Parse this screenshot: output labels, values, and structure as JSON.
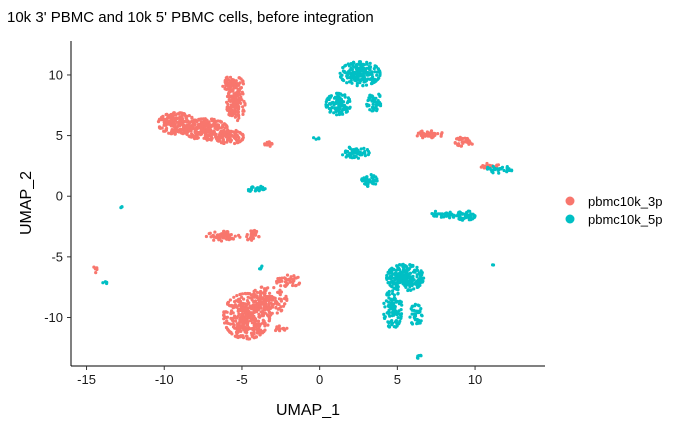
{
  "chart_data": {
    "type": "scatter",
    "title": "10k 3' PBMC and 10k 5' PBMC cells, before integration",
    "xlabel": "UMAP_1",
    "ylabel": "UMAP_2",
    "xlim": [
      -16,
      14.5
    ],
    "ylim": [
      -14,
      12.8
    ],
    "xticks": [
      -15,
      -10,
      -5,
      0,
      5,
      10
    ],
    "yticks": [
      -10,
      -5,
      0,
      5,
      10
    ],
    "grid": false,
    "legend_position": "right",
    "series": [
      {
        "name": "pbmc10k_3p",
        "color": "#F8766D",
        "clusters": [
          {
            "cx": -9.2,
            "cy": 6.0,
            "rx": 1.2,
            "ry": 0.9,
            "n": 180
          },
          {
            "cx": -7.3,
            "cy": 5.5,
            "rx": 1.4,
            "ry": 0.9,
            "n": 220
          },
          {
            "cx": -5.8,
            "cy": 4.9,
            "rx": 0.9,
            "ry": 0.6,
            "n": 110
          },
          {
            "cx": -5.4,
            "cy": 7.6,
            "rx": 0.6,
            "ry": 1.4,
            "n": 120
          },
          {
            "cx": -5.6,
            "cy": 9.3,
            "rx": 0.7,
            "ry": 0.6,
            "n": 80
          },
          {
            "cx": -3.4,
            "cy": 4.3,
            "rx": 0.5,
            "ry": 0.2,
            "n": 12
          },
          {
            "cx": -6.2,
            "cy": -3.3,
            "rx": 1.1,
            "ry": 0.4,
            "n": 60
          },
          {
            "cx": -4.3,
            "cy": -3.3,
            "rx": 0.4,
            "ry": 0.5,
            "n": 30
          },
          {
            "cx": -4.7,
            "cy": -9.9,
            "rx": 1.5,
            "ry": 1.9,
            "n": 360
          },
          {
            "cx": -3.3,
            "cy": -8.6,
            "rx": 1.2,
            "ry": 1.2,
            "n": 130
          },
          {
            "cx": -2.0,
            "cy": -7.0,
            "rx": 0.8,
            "ry": 0.5,
            "n": 40
          },
          {
            "cx": -2.6,
            "cy": -10.9,
            "rx": 0.5,
            "ry": 0.2,
            "n": 15
          },
          {
            "cx": 7.0,
            "cy": 5.1,
            "rx": 1.0,
            "ry": 0.3,
            "n": 45
          },
          {
            "cx": 9.3,
            "cy": 4.5,
            "rx": 0.6,
            "ry": 0.4,
            "n": 35
          },
          {
            "cx": 10.8,
            "cy": 2.5,
            "rx": 0.8,
            "ry": 0.2,
            "n": 25
          },
          {
            "cx": -14.4,
            "cy": -6.0,
            "rx": 0.15,
            "ry": 0.3,
            "n": 6
          }
        ]
      },
      {
        "name": "pbmc10k_5p",
        "color": "#00BFC4",
        "clusters": [
          {
            "cx": 2.6,
            "cy": 10.1,
            "rx": 1.3,
            "ry": 1.0,
            "n": 200
          },
          {
            "cx": 1.2,
            "cy": 7.6,
            "rx": 0.8,
            "ry": 0.9,
            "n": 110
          },
          {
            "cx": 3.5,
            "cy": 7.8,
            "rx": 0.5,
            "ry": 0.8,
            "n": 50
          },
          {
            "cx": 2.3,
            "cy": 3.6,
            "rx": 0.9,
            "ry": 0.5,
            "n": 60
          },
          {
            "cx": 3.2,
            "cy": 1.3,
            "rx": 0.5,
            "ry": 0.5,
            "n": 50
          },
          {
            "cx": 9.4,
            "cy": -1.6,
            "rx": 0.6,
            "ry": 0.4,
            "n": 50
          },
          {
            "cx": 8.0,
            "cy": -1.5,
            "rx": 1.0,
            "ry": 0.3,
            "n": 35
          },
          {
            "cx": 11.6,
            "cy": 2.2,
            "rx": 1.0,
            "ry": 0.3,
            "n": 30
          },
          {
            "cx": 5.5,
            "cy": -6.7,
            "rx": 1.2,
            "ry": 1.1,
            "n": 250
          },
          {
            "cx": 4.7,
            "cy": -9.3,
            "rx": 0.6,
            "ry": 1.6,
            "n": 110
          },
          {
            "cx": 6.2,
            "cy": -9.8,
            "rx": 0.4,
            "ry": 0.9,
            "n": 40
          },
          {
            "cx": -4.1,
            "cy": 0.6,
            "rx": 0.6,
            "ry": 0.25,
            "n": 25
          },
          {
            "cx": -3.8,
            "cy": -5.9,
            "rx": 0.12,
            "ry": 0.2,
            "n": 4
          },
          {
            "cx": -13.8,
            "cy": -7.1,
            "rx": 0.15,
            "ry": 0.15,
            "n": 4
          },
          {
            "cx": -12.7,
            "cy": -0.9,
            "rx": 0.1,
            "ry": 0.1,
            "n": 3
          },
          {
            "cx": -0.2,
            "cy": 4.8,
            "rx": 0.2,
            "ry": 0.1,
            "n": 4
          },
          {
            "cx": 11.2,
            "cy": -5.7,
            "rx": 0.1,
            "ry": 0.1,
            "n": 2
          },
          {
            "cx": 6.4,
            "cy": -13.3,
            "rx": 0.15,
            "ry": 0.25,
            "n": 6
          }
        ]
      }
    ]
  }
}
